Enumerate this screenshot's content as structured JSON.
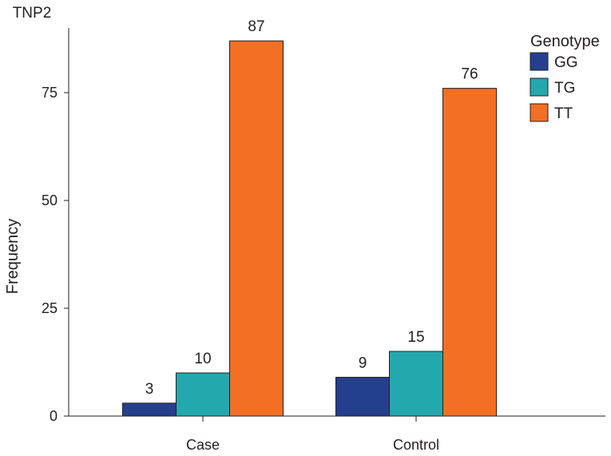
{
  "chart_data": {
    "type": "bar",
    "title": "TNP2",
    "xlabel": "",
    "ylabel": "Frequency",
    "categories": [
      "Case",
      "Control"
    ],
    "series": [
      {
        "name": "GG",
        "values": [
          3,
          9
        ],
        "color": "#253f8f"
      },
      {
        "name": "TG",
        "values": [
          10,
          15
        ],
        "color": "#23a8ae"
      },
      {
        "name": "TT",
        "values": [
          87,
          76
        ],
        "color": "#f26f23"
      }
    ],
    "ylim": [
      0,
      90
    ],
    "yticks": [
      0,
      25,
      50,
      75
    ],
    "ytick_labels": [
      "0",
      "25",
      "50",
      "75"
    ],
    "legend": {
      "title": "Genotype",
      "position": "top-right"
    },
    "grid": false
  }
}
